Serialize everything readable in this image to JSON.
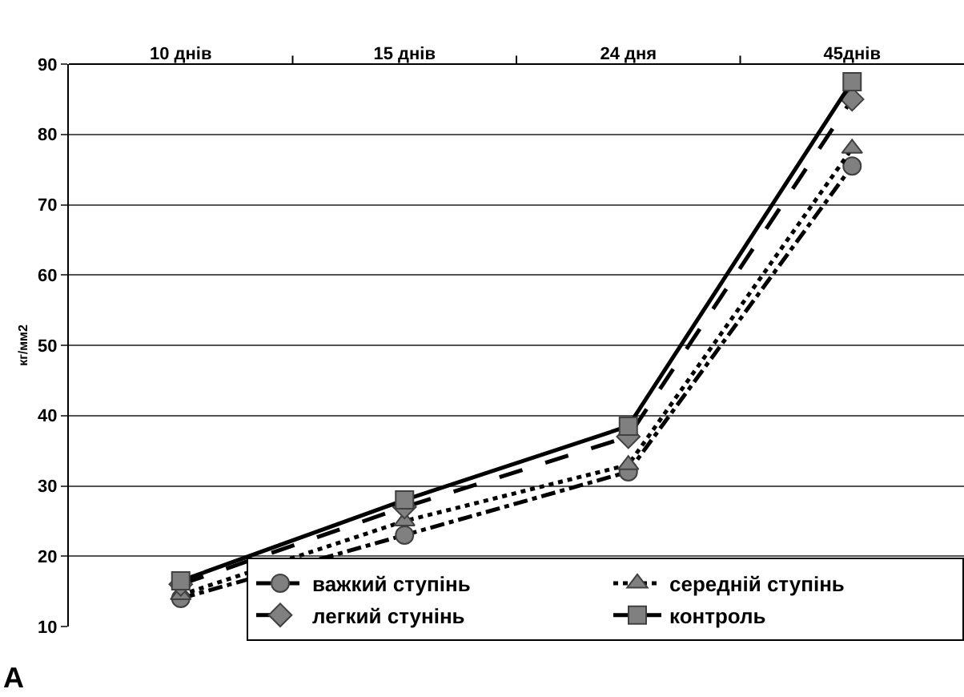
{
  "chart_data": {
    "type": "line",
    "ylabel": "кг/мм2",
    "categories": [
      "10 днів",
      "15 днів",
      "24 дня",
      "45днів"
    ],
    "series": [
      {
        "name": "важкий ступінь",
        "color": "#000000",
        "marker": "circle",
        "line_style": "dashdot",
        "values": [
          14,
          23,
          32,
          75.5
        ]
      },
      {
        "name": "середній ступінь",
        "color": "#000000",
        "marker": "triangle",
        "line_style": "dotted",
        "values": [
          14.5,
          25,
          33,
          78
        ]
      },
      {
        "name": "легкий стунінь",
        "color": "#000000",
        "marker": "diamond",
        "line_style": "dashed",
        "values": [
          16,
          27,
          37,
          85
        ]
      },
      {
        "name": "контроль",
        "color": "#000000",
        "marker": "square",
        "line_style": "solid",
        "values": [
          16.5,
          28,
          38.5,
          87.5
        ]
      }
    ],
    "ylim": [
      10,
      90
    ],
    "yticks": [
      10,
      20,
      30,
      40,
      50,
      60,
      70,
      80,
      90
    ],
    "grid": "y",
    "legend": "bottom right",
    "annotations": [
      "A"
    ]
  }
}
